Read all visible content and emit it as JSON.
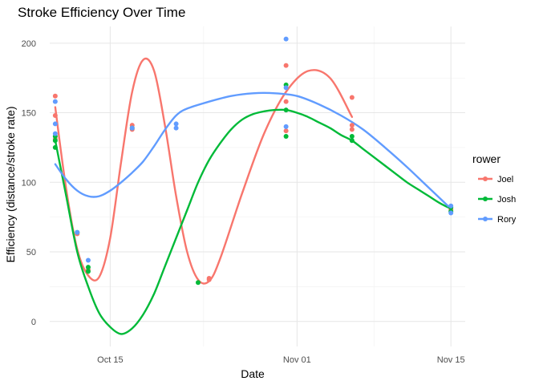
{
  "chart_data": {
    "type": "scatter",
    "title": "Stroke Efficiency Over Time",
    "xlabel": "Date",
    "ylabel": "Efficiency (distance/stroke rate)",
    "x_ticks": [
      {
        "label": "Oct 15",
        "day": 15
      },
      {
        "label": "Nov 01",
        "day": 32
      },
      {
        "label": "Nov 15",
        "day": 46
      }
    ],
    "y_ticks": [
      0,
      50,
      100,
      150,
      200
    ],
    "xlim": [
      9.5,
      47.3
    ],
    "ylim": [
      -18,
      212
    ],
    "grid": true,
    "legend": {
      "title": "rower",
      "position": "right"
    },
    "series": [
      {
        "name": "Joel",
        "color": "#F8766D",
        "points": [
          [
            10,
            162
          ],
          [
            10,
            148
          ],
          [
            10,
            131
          ],
          [
            12,
            63
          ],
          [
            13,
            37
          ],
          [
            17,
            141
          ],
          [
            17,
            138
          ],
          [
            24,
            31
          ],
          [
            24,
            30
          ],
          [
            31,
            184
          ],
          [
            31,
            158
          ],
          [
            31,
            137
          ],
          [
            37,
            161
          ],
          [
            37,
            141
          ],
          [
            37,
            138
          ],
          [
            46,
            81
          ],
          [
            46,
            80
          ]
        ],
        "trend": [
          [
            10,
            154
          ],
          [
            11,
            95
          ],
          [
            12,
            52
          ],
          [
            13,
            33
          ],
          [
            14,
            32
          ],
          [
            15,
            60
          ],
          [
            16,
            115
          ],
          [
            17,
            165
          ],
          [
            18,
            188
          ],
          [
            19,
            180
          ],
          [
            20,
            140
          ],
          [
            21,
            90
          ],
          [
            22,
            50
          ],
          [
            23,
            30
          ],
          [
            24,
            29
          ],
          [
            25,
            45
          ],
          [
            27,
            92
          ],
          [
            29,
            135
          ],
          [
            31,
            165
          ],
          [
            33,
            180
          ],
          [
            35,
            175
          ],
          [
            37,
            147
          ]
        ]
      },
      {
        "name": "Josh",
        "color": "#00BA38",
        "points": [
          [
            10,
            133
          ],
          [
            10,
            130
          ],
          [
            10,
            125
          ],
          [
            12,
            64
          ],
          [
            13,
            39
          ],
          [
            13,
            36
          ],
          [
            17,
            139
          ],
          [
            23,
            28
          ],
          [
            31,
            170
          ],
          [
            31,
            152
          ],
          [
            31,
            133
          ],
          [
            37,
            133
          ],
          [
            37,
            130
          ],
          [
            46,
            82
          ],
          [
            46,
            79
          ]
        ],
        "trend": [
          [
            10,
            130
          ],
          [
            11,
            90
          ],
          [
            12,
            50
          ],
          [
            13,
            25
          ],
          [
            14,
            6
          ],
          [
            15,
            -4
          ],
          [
            16,
            -9
          ],
          [
            17,
            -5
          ],
          [
            18,
            5
          ],
          [
            19,
            20
          ],
          [
            20,
            40
          ],
          [
            21,
            60
          ],
          [
            22,
            80
          ],
          [
            23,
            100
          ],
          [
            24,
            116
          ],
          [
            25,
            128
          ],
          [
            26,
            138
          ],
          [
            27,
            145
          ],
          [
            28,
            149
          ],
          [
            29,
            151
          ],
          [
            30,
            152
          ],
          [
            31,
            152
          ],
          [
            32,
            150
          ],
          [
            33,
            147
          ],
          [
            34,
            143
          ],
          [
            35,
            139
          ],
          [
            36,
            134
          ],
          [
            37,
            130
          ],
          [
            38,
            124
          ],
          [
            39,
            118
          ],
          [
            40,
            112
          ],
          [
            41,
            106
          ],
          [
            42,
            100
          ],
          [
            43,
            95
          ],
          [
            44,
            90
          ],
          [
            45,
            85
          ],
          [
            46,
            81
          ]
        ]
      },
      {
        "name": "Rory",
        "color": "#619CFF",
        "points": [
          [
            10,
            158
          ],
          [
            10,
            142
          ],
          [
            10,
            135
          ],
          [
            12,
            64
          ],
          [
            13,
            44
          ],
          [
            17,
            139
          ],
          [
            21,
            142
          ],
          [
            21,
            139
          ],
          [
            31,
            203
          ],
          [
            31,
            168
          ],
          [
            31,
            140
          ],
          [
            46,
            83
          ],
          [
            46,
            78
          ]
        ],
        "trend": [
          [
            10,
            113
          ],
          [
            11,
            102
          ],
          [
            12,
            94
          ],
          [
            13,
            90
          ],
          [
            14,
            90
          ],
          [
            15,
            94
          ],
          [
            16,
            100
          ],
          [
            17,
            107
          ],
          [
            18,
            115
          ],
          [
            19,
            126
          ],
          [
            20,
            138
          ],
          [
            21,
            148
          ],
          [
            22,
            153
          ],
          [
            24,
            158
          ],
          [
            26,
            162
          ],
          [
            28,
            164
          ],
          [
            30,
            164
          ],
          [
            32,
            162
          ],
          [
            34,
            156
          ],
          [
            36,
            148
          ],
          [
            38,
            138
          ],
          [
            40,
            125
          ],
          [
            42,
            111
          ],
          [
            44,
            96
          ],
          [
            46,
            81
          ]
        ]
      }
    ]
  }
}
